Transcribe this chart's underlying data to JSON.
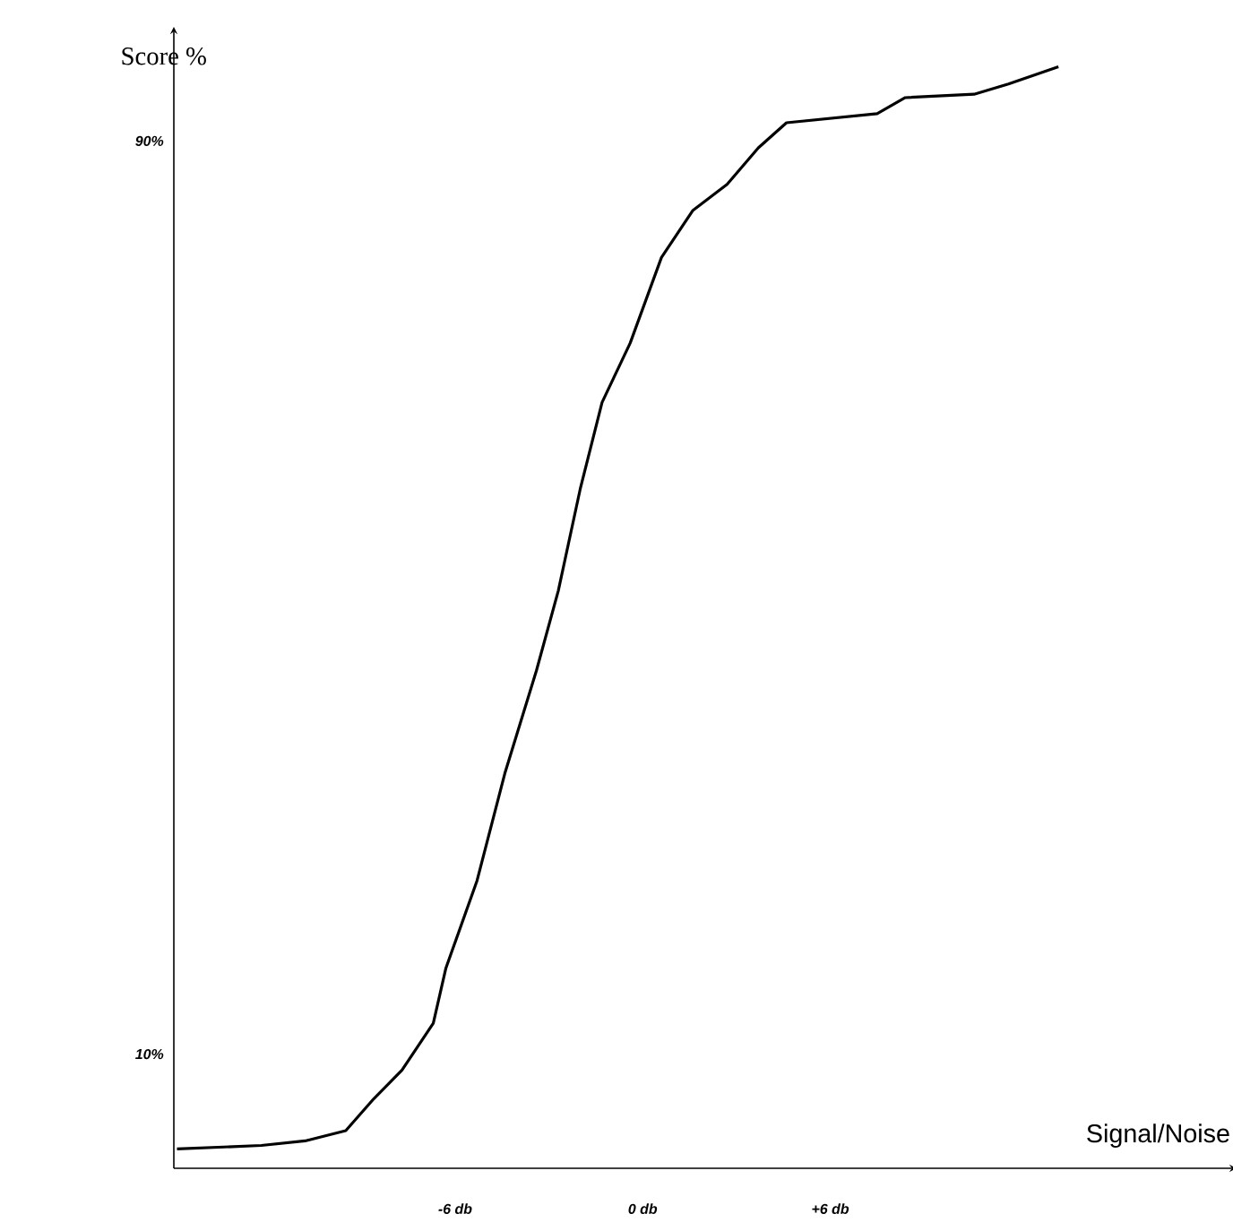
{
  "chart_data": {
    "type": "line",
    "xlabel": "Signal/Noise",
    "ylabel": "Score %",
    "x": [
      -14.9,
      -12.2,
      -10.8,
      -9.5,
      -8.6,
      -7.7,
      -6.7,
      -6.3,
      -5.3,
      -4.4,
      -3.4,
      -2.7,
      -2.0,
      -1.3,
      -0.4,
      0.6,
      1.6,
      2.7,
      3.7,
      4.6,
      7.5,
      8.4,
      10.6,
      11.7,
      13.3
    ],
    "series": [
      {
        "color": "#000000",
        "values": [
          1.7,
          2.0,
          2.4,
          3.3,
          6.1,
          8.6,
          12.7,
          17.5,
          25.2,
          34.7,
          43.6,
          50.6,
          59.5,
          67.1,
          72.3,
          79.8,
          83.9,
          86.2,
          89.4,
          91.6,
          92.4,
          93.8,
          94.1,
          95.0,
          96.5
        ]
      }
    ],
    "xlim": [
      -15,
      19
    ],
    "ylim": [
      0,
      100
    ],
    "xticks": [
      {
        "value": -6,
        "label": "-6 db"
      },
      {
        "value": 0,
        "label": "0 db"
      },
      {
        "value": 6,
        "label": "+6 db"
      }
    ],
    "yticks": [
      {
        "value": 10,
        "label": "10%"
      },
      {
        "value": 90,
        "label": "90%"
      }
    ],
    "marker": "none",
    "line_style": "solid"
  }
}
